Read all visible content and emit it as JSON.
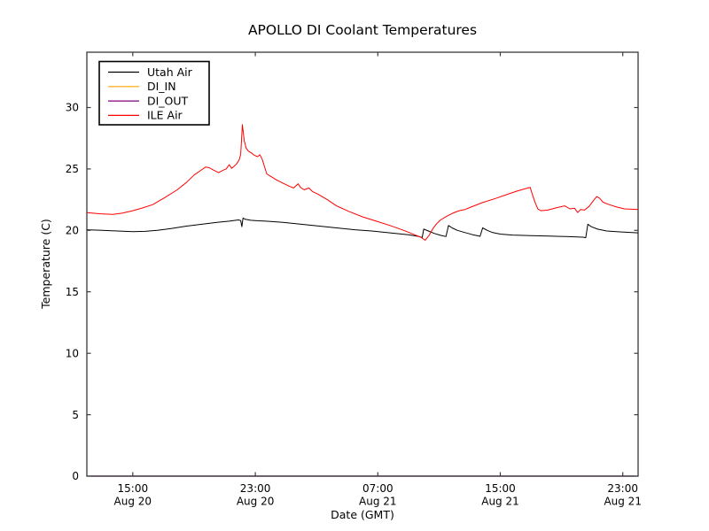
{
  "window": {
    "background": "#ffffff"
  },
  "chart_data": {
    "type": "line",
    "title": "APOLLO DI Coolant Temperatures",
    "xlabel": "Date (GMT)",
    "ylabel": "Temperature (C)",
    "x_unit": "hours since Aug 20 12:00 GMT",
    "xlim": [
      0,
      36
    ],
    "ylim": [
      0,
      34.5
    ],
    "grid": false,
    "legend_position": "upper left",
    "axis_color": "#3c3c3c",
    "x_ticks": [
      {
        "pos": 3,
        "time": "15:00",
        "date": "Aug 20"
      },
      {
        "pos": 11,
        "time": "23:00",
        "date": "Aug 20"
      },
      {
        "pos": 19,
        "time": "07:00",
        "date": "Aug 21"
      },
      {
        "pos": 27,
        "time": "15:00",
        "date": "Aug 21"
      },
      {
        "pos": 35,
        "time": "23:00",
        "date": "Aug 21"
      }
    ],
    "y_ticks": [
      0,
      5,
      10,
      15,
      20,
      25,
      30
    ],
    "series": [
      {
        "name": "Utah Air",
        "color": "#000000",
        "points": [
          [
            0,
            20.05
          ],
          [
            1.0,
            20.0
          ],
          [
            2.0,
            19.95
          ],
          [
            3.0,
            19.9
          ],
          [
            3.8,
            19.92
          ],
          [
            4.6,
            20.0
          ],
          [
            5.5,
            20.15
          ],
          [
            6.5,
            20.35
          ],
          [
            7.5,
            20.5
          ],
          [
            8.5,
            20.65
          ],
          [
            9.3,
            20.75
          ],
          [
            9.9,
            20.85
          ],
          [
            10.05,
            20.8
          ],
          [
            10.12,
            20.3
          ],
          [
            10.2,
            21.0
          ],
          [
            10.35,
            20.9
          ],
          [
            10.7,
            20.82
          ],
          [
            11.2,
            20.78
          ],
          [
            11.7,
            20.75
          ],
          [
            12.8,
            20.65
          ],
          [
            14.0,
            20.5
          ],
          [
            15.2,
            20.35
          ],
          [
            16.3,
            20.2
          ],
          [
            17.5,
            20.05
          ],
          [
            18.6,
            19.95
          ],
          [
            19.8,
            19.8
          ],
          [
            21.0,
            19.65
          ],
          [
            21.7,
            19.5
          ],
          [
            21.9,
            19.42
          ],
          [
            22.0,
            20.1
          ],
          [
            22.3,
            19.95
          ],
          [
            22.7,
            19.75
          ],
          [
            23.1,
            19.6
          ],
          [
            23.45,
            19.5
          ],
          [
            23.62,
            20.4
          ],
          [
            23.85,
            20.2
          ],
          [
            24.2,
            20.0
          ],
          [
            24.7,
            19.82
          ],
          [
            25.2,
            19.65
          ],
          [
            25.68,
            19.52
          ],
          [
            25.85,
            20.2
          ],
          [
            26.15,
            20.0
          ],
          [
            26.5,
            19.82
          ],
          [
            27.0,
            19.7
          ],
          [
            27.8,
            19.62
          ],
          [
            29.0,
            19.58
          ],
          [
            30.2,
            19.54
          ],
          [
            31.3,
            19.5
          ],
          [
            32.4,
            19.45
          ],
          [
            32.58,
            19.4
          ],
          [
            32.72,
            20.5
          ],
          [
            32.95,
            20.3
          ],
          [
            33.35,
            20.1
          ],
          [
            33.95,
            19.95
          ],
          [
            34.8,
            19.88
          ],
          [
            36,
            19.8
          ]
        ]
      },
      {
        "name": "DI_IN",
        "color": "#ffa500",
        "points": [
          [
            0,
            0
          ],
          [
            36,
            0
          ]
        ]
      },
      {
        "name": "DI_OUT",
        "color": "#800080",
        "points": [
          [
            0,
            0
          ],
          [
            36,
            0
          ]
        ]
      },
      {
        "name": "ILE Air",
        "color": "#ff0000",
        "points": [
          [
            0,
            21.45
          ],
          [
            0.9,
            21.35
          ],
          [
            1.7,
            21.3
          ],
          [
            2.3,
            21.4
          ],
          [
            3.0,
            21.6
          ],
          [
            3.7,
            21.85
          ],
          [
            4.3,
            22.1
          ],
          [
            5.0,
            22.6
          ],
          [
            5.9,
            23.3
          ],
          [
            6.5,
            23.9
          ],
          [
            7.0,
            24.5
          ],
          [
            7.4,
            24.85
          ],
          [
            7.75,
            25.15
          ],
          [
            8.0,
            25.1
          ],
          [
            8.2,
            24.95
          ],
          [
            8.6,
            24.7
          ],
          [
            8.9,
            24.9
          ],
          [
            9.1,
            25.0
          ],
          [
            9.3,
            25.35
          ],
          [
            9.45,
            25.05
          ],
          [
            9.6,
            25.2
          ],
          [
            9.8,
            25.45
          ],
          [
            9.95,
            25.75
          ],
          [
            10.05,
            26.2
          ],
          [
            10.16,
            28.6
          ],
          [
            10.28,
            27.3
          ],
          [
            10.4,
            26.7
          ],
          [
            10.55,
            26.45
          ],
          [
            10.75,
            26.3
          ],
          [
            10.95,
            26.1
          ],
          [
            11.15,
            26.0
          ],
          [
            11.3,
            26.15
          ],
          [
            11.45,
            25.8
          ],
          [
            11.6,
            25.2
          ],
          [
            11.75,
            24.6
          ],
          [
            12.0,
            24.4
          ],
          [
            12.4,
            24.1
          ],
          [
            12.8,
            23.85
          ],
          [
            13.2,
            23.6
          ],
          [
            13.5,
            23.45
          ],
          [
            13.8,
            23.8
          ],
          [
            13.95,
            23.5
          ],
          [
            14.2,
            23.3
          ],
          [
            14.5,
            23.45
          ],
          [
            14.75,
            23.15
          ],
          [
            15.1,
            22.95
          ],
          [
            15.7,
            22.5
          ],
          [
            16.3,
            22.0
          ],
          [
            17.1,
            21.55
          ],
          [
            18.0,
            21.1
          ],
          [
            18.9,
            20.75
          ],
          [
            19.8,
            20.4
          ],
          [
            20.7,
            20.0
          ],
          [
            21.4,
            19.65
          ],
          [
            21.8,
            19.45
          ],
          [
            22.1,
            19.2
          ],
          [
            22.35,
            19.6
          ],
          [
            22.6,
            20.15
          ],
          [
            22.85,
            20.55
          ],
          [
            23.1,
            20.85
          ],
          [
            23.5,
            21.15
          ],
          [
            23.9,
            21.4
          ],
          [
            24.3,
            21.6
          ],
          [
            24.7,
            21.7
          ],
          [
            25.1,
            21.9
          ],
          [
            25.8,
            22.25
          ],
          [
            26.7,
            22.6
          ],
          [
            27.5,
            22.95
          ],
          [
            28.1,
            23.2
          ],
          [
            28.8,
            23.45
          ],
          [
            28.95,
            23.5
          ],
          [
            29.1,
            22.9
          ],
          [
            29.3,
            22.2
          ],
          [
            29.45,
            21.75
          ],
          [
            29.65,
            21.6
          ],
          [
            30.1,
            21.65
          ],
          [
            30.7,
            21.85
          ],
          [
            31.2,
            22.0
          ],
          [
            31.55,
            21.75
          ],
          [
            31.85,
            21.8
          ],
          [
            32.05,
            21.45
          ],
          [
            32.25,
            21.7
          ],
          [
            32.5,
            21.65
          ],
          [
            32.8,
            21.95
          ],
          [
            33.1,
            22.45
          ],
          [
            33.3,
            22.75
          ],
          [
            33.5,
            22.6
          ],
          [
            33.7,
            22.3
          ],
          [
            34.1,
            22.1
          ],
          [
            34.6,
            21.9
          ],
          [
            35.1,
            21.75
          ],
          [
            36,
            21.7
          ]
        ]
      }
    ]
  }
}
